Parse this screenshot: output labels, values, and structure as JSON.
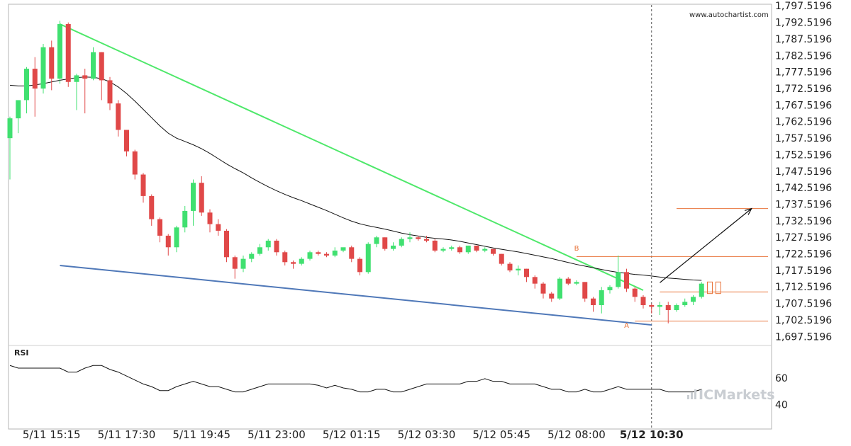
{
  "source": "www.autochartist.com",
  "brand": {
    "prefix": "IC",
    "suffix": "Markets"
  },
  "rsi_title": "RSI",
  "chart_data": [
    {
      "type": "candlestick",
      "y_tick_labels": [
        "1,797.5196",
        "1,792.5196",
        "1,787.5196",
        "1,782.5196",
        "1,777.5196",
        "1,772.5196",
        "1,767.5196",
        "1,762.5196",
        "1,757.5196",
        "1,752.5196",
        "1,747.5196",
        "1,742.5196",
        "1,737.5196",
        "1,732.5196",
        "1,727.5196",
        "1,722.5196",
        "1,717.5196",
        "1,712.5196",
        "1,707.5196",
        "1,702.5196",
        "1,697.5196"
      ],
      "y_tick_values": [
        1797.5196,
        1792.5196,
        1787.5196,
        1782.5196,
        1777.5196,
        1772.5196,
        1767.5196,
        1762.5196,
        1757.5196,
        1752.5196,
        1747.5196,
        1742.5196,
        1737.5196,
        1732.5196,
        1727.5196,
        1722.5196,
        1717.5196,
        1712.5196,
        1707.5196,
        1702.5196,
        1697.5196
      ],
      "ylim": [
        1694.8,
        1798.0
      ],
      "x_tick_labels": [
        "5/11 15:15",
        "5/11 17:30",
        "5/11 19:45",
        "5/11 23:00",
        "5/12 01:15",
        "5/12 03:30",
        "5/12 05:45",
        "5/12 08:00",
        "5/12 10:30"
      ],
      "x_tick_candle_index": [
        5,
        14,
        23,
        32,
        41,
        50,
        59,
        68,
        77
      ],
      "up_color": "#40e070",
      "down_color": "#e04848",
      "candles": [
        [
          1757.5,
          1764.0,
          1745.0,
          1763.5
        ],
        [
          1763.5,
          1769.0,
          1759.0,
          1769.0
        ],
        [
          1769.0,
          1779.0,
          1765.0,
          1778.5
        ],
        [
          1778.5,
          1782.0,
          1764.0,
          1772.5
        ],
        [
          1772.5,
          1786.0,
          1771.0,
          1785.0
        ],
        [
          1785.0,
          1787.0,
          1772.0,
          1775.5
        ],
        [
          1775.5,
          1793.0,
          1774.0,
          1792.0
        ],
        [
          1792.0,
          1792.5,
          1773.0,
          1774.5
        ],
        [
          1774.5,
          1777.0,
          1766.0,
          1776.5
        ],
        [
          1776.5,
          1778.5,
          1765.0,
          1775.5
        ],
        [
          1775.5,
          1785.0,
          1775.0,
          1783.5
        ],
        [
          1783.5,
          1783.5,
          1769.0,
          1775.0
        ],
        [
          1775.0,
          1776.0,
          1766.0,
          1768.0
        ],
        [
          1768.0,
          1769.0,
          1758.0,
          1760.0
        ],
        [
          1760.0,
          1760.0,
          1752.0,
          1753.5
        ],
        [
          1753.5,
          1754.0,
          1745.0,
          1746.5
        ],
        [
          1746.5,
          1747.0,
          1738.0,
          1740.0
        ],
        [
          1740.0,
          1740.5,
          1731.0,
          1733.0
        ],
        [
          1733.0,
          1733.5,
          1726.0,
          1728.0
        ],
        [
          1728.0,
          1728.5,
          1722.0,
          1724.5
        ],
        [
          1724.5,
          1731.0,
          1723.0,
          1730.5
        ],
        [
          1730.5,
          1737.0,
          1729.0,
          1735.5
        ],
        [
          1735.5,
          1745.0,
          1731.0,
          1744.0
        ],
        [
          1744.0,
          1746.0,
          1734.0,
          1735.0
        ],
        [
          1735.0,
          1736.0,
          1729.0,
          1731.5
        ],
        [
          1731.5,
          1733.0,
          1728.0,
          1729.5
        ],
        [
          1729.5,
          1730.0,
          1720.0,
          1721.5
        ],
        [
          1721.5,
          1722.0,
          1715.0,
          1718.0
        ],
        [
          1718.0,
          1722.0,
          1717.0,
          1721.0
        ],
        [
          1721.0,
          1723.0,
          1720.0,
          1722.5
        ],
        [
          1722.5,
          1725.5,
          1722.0,
          1724.5
        ],
        [
          1724.5,
          1727.0,
          1723.5,
          1726.5
        ],
        [
          1726.5,
          1727.0,
          1722.0,
          1723.0
        ],
        [
          1723.0,
          1723.5,
          1719.0,
          1720.0
        ],
        [
          1720.0,
          1720.5,
          1718.0,
          1719.5
        ],
        [
          1719.5,
          1721.5,
          1719.0,
          1721.0
        ],
        [
          1721.0,
          1723.5,
          1720.5,
          1723.0
        ],
        [
          1723.0,
          1723.5,
          1722.0,
          1722.5
        ],
        [
          1722.5,
          1723.0,
          1721.5,
          1722.0
        ],
        [
          1722.0,
          1724.5,
          1721.5,
          1723.5
        ],
        [
          1723.5,
          1724.0,
          1723.0,
          1724.5
        ],
        [
          1724.5,
          1725.0,
          1720.0,
          1721.0
        ],
        [
          1721.0,
          1721.5,
          1716.0,
          1717.0
        ],
        [
          1717.0,
          1726.0,
          1716.5,
          1725.5
        ],
        [
          1725.5,
          1728.0,
          1724.5,
          1727.5
        ],
        [
          1727.5,
          1727.5,
          1723.5,
          1724.0
        ],
        [
          1724.0,
          1726.0,
          1723.5,
          1725.0
        ],
        [
          1725.0,
          1727.5,
          1724.5,
          1727.0
        ],
        [
          1727.0,
          1729.0,
          1726.0,
          1727.5
        ],
        [
          1727.5,
          1728.0,
          1726.5,
          1727.0
        ],
        [
          1727.0,
          1728.0,
          1726.0,
          1726.5
        ],
        [
          1726.5,
          1727.0,
          1723.0,
          1723.5
        ],
        [
          1723.5,
          1724.5,
          1723.0,
          1724.0
        ],
        [
          1724.0,
          1725.0,
          1723.5,
          1724.5
        ],
        [
          1724.5,
          1725.0,
          1722.5,
          1723.0
        ],
        [
          1723.0,
          1725.0,
          1722.5,
          1725.0
        ],
        [
          1725.0,
          1725.0,
          1723.0,
          1723.5
        ],
        [
          1723.5,
          1724.5,
          1723.0,
          1724.0
        ],
        [
          1724.0,
          1724.0,
          1722.0,
          1722.5
        ],
        [
          1722.5,
          1722.5,
          1719.0,
          1719.5
        ],
        [
          1719.5,
          1720.0,
          1717.0,
          1717.5
        ],
        [
          1717.5,
          1719.0,
          1716.0,
          1718.0
        ],
        [
          1718.0,
          1718.0,
          1714.0,
          1715.5
        ],
        [
          1715.5,
          1716.0,
          1712.0,
          1713.5
        ],
        [
          1713.5,
          1714.0,
          1709.0,
          1710.5
        ],
        [
          1710.5,
          1711.0,
          1708.0,
          1709.0
        ],
        [
          1709.0,
          1715.5,
          1708.5,
          1715.0
        ],
        [
          1715.0,
          1715.5,
          1713.0,
          1713.5
        ],
        [
          1713.5,
          1714.5,
          1713.0,
          1714.0
        ],
        [
          1714.0,
          1714.0,
          1708.0,
          1709.0
        ],
        [
          1709.0,
          1709.5,
          1705.0,
          1707.0
        ],
        [
          1707.0,
          1712.5,
          1704.5,
          1711.5
        ],
        [
          1711.5,
          1713.0,
          1710.5,
          1712.5
        ],
        [
          1712.5,
          1722.0,
          1712.0,
          1717.0
        ],
        [
          1717.0,
          1718.0,
          1711.0,
          1712.0
        ],
        [
          1712.0,
          1712.5,
          1708.0,
          1709.5
        ],
        [
          1709.5,
          1710.0,
          1706.0,
          1707.0
        ],
        [
          1707.0,
          1707.5,
          1704.5,
          1706.5
        ],
        [
          1706.5,
          1708.0,
          1704.0,
          1707.0
        ],
        [
          1707.0,
          1708.0,
          1701.5,
          1705.5
        ],
        [
          1705.5,
          1707.5,
          1705.0,
          1707.0
        ],
        [
          1707.0,
          1709.0,
          1706.5,
          1708.0
        ],
        [
          1708.0,
          1710.0,
          1707.0,
          1709.5
        ],
        [
          1709.5,
          1714.0,
          1709.0,
          1713.5
        ]
      ],
      "moving_average": [
        1773.5,
        1773.3,
        1773.3,
        1773.6,
        1774.0,
        1774.5,
        1775.0,
        1775.4,
        1775.8,
        1776.0,
        1775.9,
        1775.5,
        1774.5,
        1773.0,
        1771.0,
        1768.7,
        1766.2,
        1763.7,
        1761.2,
        1759.0,
        1757.5,
        1756.5,
        1755.5,
        1754.3,
        1752.9,
        1751.3,
        1749.7,
        1748.3,
        1747.0,
        1745.5,
        1744.1,
        1742.8,
        1741.6,
        1740.5,
        1739.5,
        1738.6,
        1737.6,
        1736.6,
        1735.6,
        1734.5,
        1733.4,
        1732.4,
        1731.6,
        1731.0,
        1730.5,
        1730.0,
        1729.4,
        1728.8,
        1728.3,
        1727.9,
        1727.5,
        1727.2,
        1727.0,
        1726.7,
        1726.3,
        1725.8,
        1725.3,
        1724.8,
        1724.3,
        1723.9,
        1723.5,
        1723.1,
        1722.6,
        1722.1,
        1721.6,
        1721.1,
        1720.5,
        1719.9,
        1719.3,
        1718.8,
        1718.3,
        1717.8,
        1717.3,
        1716.9,
        1716.6,
        1716.3,
        1716.1,
        1715.8,
        1715.5,
        1715.2,
        1715.0,
        1714.8,
        1714.6,
        1714.5
      ],
      "trend_line_upper": {
        "from": [
          6,
          1792.0
        ],
        "to": [
          76,
          1711.5
        ],
        "color": "#4ee86a"
      },
      "trend_line_lower": {
        "from": [
          6,
          1719.0
        ],
        "to": [
          77,
          1701.0
        ],
        "color": "#4f78b8"
      },
      "levels": [
        {
          "label": "B",
          "value": 1721.7,
          "from_index": 68
        },
        {
          "label": "",
          "value": 1711.0,
          "from_index": 78
        },
        {
          "label": "A",
          "value": 1702.2,
          "from_index": 75
        },
        {
          "label": "",
          "value": 1736.2,
          "from_index": 80
        }
      ],
      "forecast": {
        "from": [
          78,
          1713.8
        ],
        "to": [
          89,
          1736.2
        ]
      },
      "projection_candles": [
        [
          1710.5,
          1714.0
        ],
        [
          1710.5,
          1714.0
        ]
      ],
      "pattern_labels": [
        {
          "text": "B",
          "index": 68,
          "value": 1723.5
        },
        {
          "text": "A",
          "index": 74,
          "value": 1700.2
        }
      ]
    },
    {
      "type": "line",
      "title": "RSI",
      "y_ticks": [
        60,
        40
      ],
      "ylim": [
        22,
        82
      ],
      "values": [
        69,
        67,
        67,
        67,
        67,
        67,
        67,
        64,
        64,
        67,
        69,
        69,
        66,
        64,
        61,
        58,
        55,
        53,
        50,
        50,
        53,
        55,
        57,
        55,
        53,
        53,
        51,
        49,
        49,
        51,
        53,
        55,
        55,
        55,
        55,
        55,
        55,
        54,
        52,
        54,
        52,
        51,
        49,
        49,
        51,
        51,
        49,
        49,
        51,
        53,
        55,
        55,
        55,
        55,
        55,
        57,
        57,
        59,
        57,
        57,
        55,
        55,
        55,
        55,
        53,
        51,
        51,
        49,
        49,
        51,
        49,
        49,
        51,
        53,
        51,
        51,
        51,
        51,
        51,
        49,
        49,
        49,
        49,
        51
      ]
    }
  ]
}
